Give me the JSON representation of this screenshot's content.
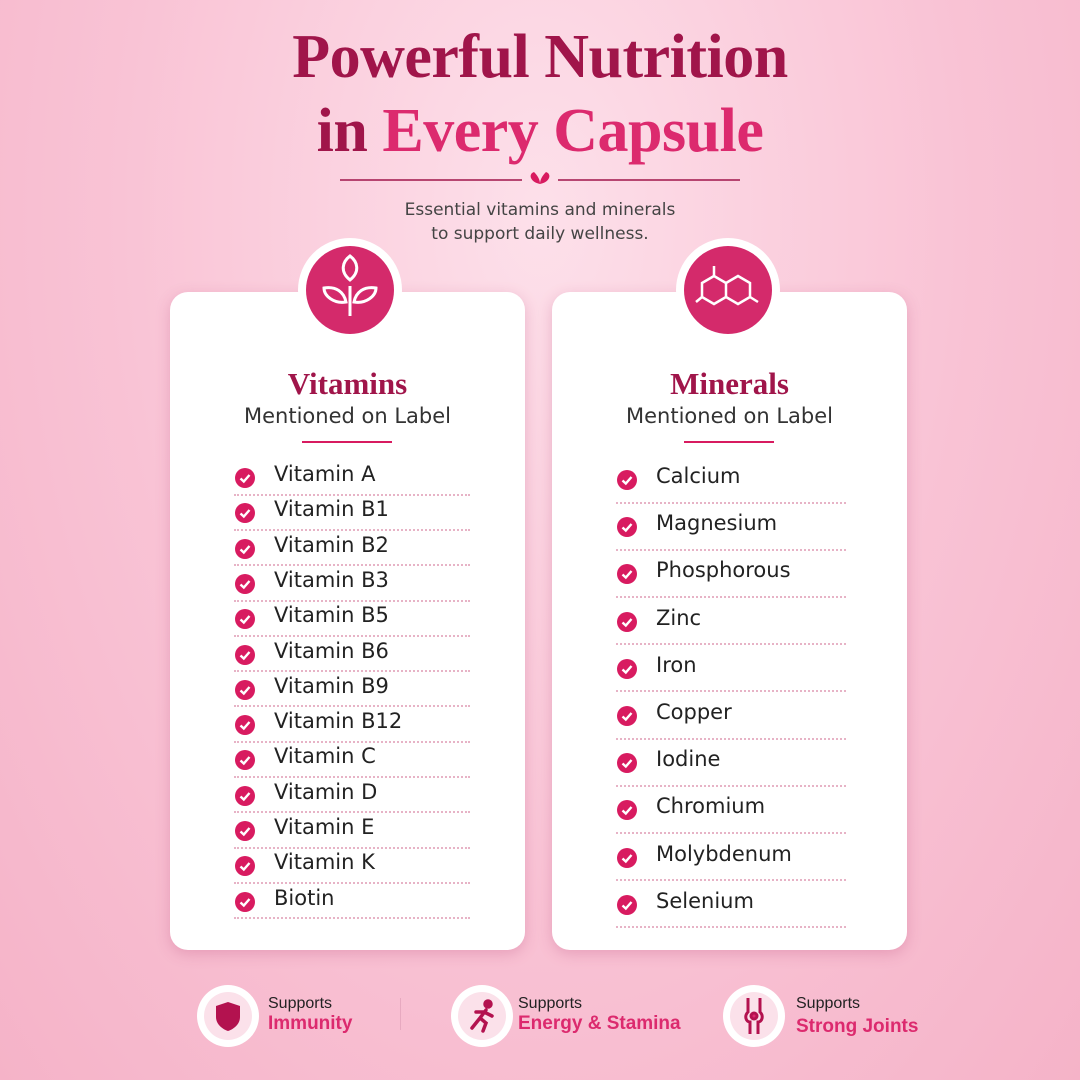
{
  "header": {
    "title_line1": "Powerful Nutrition",
    "title_line2_dark": "in",
    "title_line2_pink": "Every Capsule",
    "subtitle_line1": "Essential vitamins and minerals",
    "subtitle_line2": "to support daily wellness."
  },
  "cards": [
    {
      "title": "Vitamins",
      "subtitle": "Mentioned on Label",
      "items": [
        "Vitamin A",
        "Vitamin B1",
        "Vitamin B2",
        "Vitamin B3",
        "Vitamin B5",
        "Vitamin B6",
        "Vitamin B9",
        "Vitamin B12",
        "Vitamin C",
        "Vitamin D",
        "Vitamin E",
        "Vitamin K",
        "Biotin"
      ]
    },
    {
      "title": "Minerals",
      "subtitle": "Mentioned on Label",
      "items": [
        "Calcium",
        "Magnesium",
        "Phosphorous",
        "Zinc",
        "Iron",
        "Copper",
        "Iodine",
        "Chromium",
        "Molybdenum",
        "Selenium"
      ]
    }
  ],
  "badges": [
    {
      "label": "Supports",
      "highlight": "Immunity"
    },
    {
      "label": "Supports",
      "highlight": "Energy & Stamina"
    },
    {
      "label": "Supports",
      "highlight": "Strong Joints"
    }
  ]
}
